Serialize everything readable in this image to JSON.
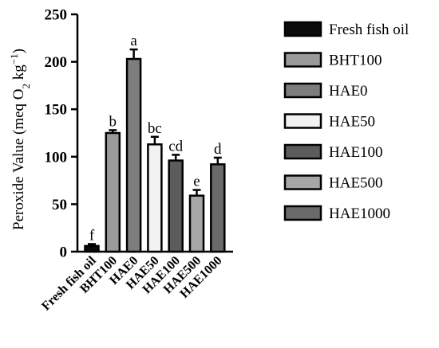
{
  "chart_data": {
    "type": "bar",
    "ylabel_main": "Peroxide Value (meq O",
    "ylabel_sub": "2",
    "ylabel_mid": " kg",
    "ylabel_sup": "−1",
    "ylabel_end": ")",
    "ylim": [
      0,
      250
    ],
    "yticks": [
      0,
      50,
      100,
      150,
      200,
      250
    ],
    "grid": false,
    "legend_position": "right",
    "categories": [
      "Fresh fish oil",
      "BHT100",
      "HAE0",
      "HAE50",
      "HAE100",
      "HAE500",
      "HAE1000"
    ],
    "values": [
      6,
      125,
      203,
      113,
      96,
      59,
      92
    ],
    "errors": [
      2,
      3,
      10,
      8,
      6,
      6,
      7
    ],
    "letters": [
      "f",
      "b",
      "a",
      "bc",
      "cd",
      "e",
      "d"
    ],
    "colors": [
      "#0b0b0b",
      "#9a9a9a",
      "#7d7d7d",
      "#f2f2f2",
      "#5c5c5c",
      "#a6a6a6",
      "#6a6a6a"
    ],
    "legend": [
      "Fresh fish oil",
      "BHT100",
      "HAE0",
      "HAE50",
      "HAE100",
      "HAE500",
      "HAE1000"
    ]
  }
}
